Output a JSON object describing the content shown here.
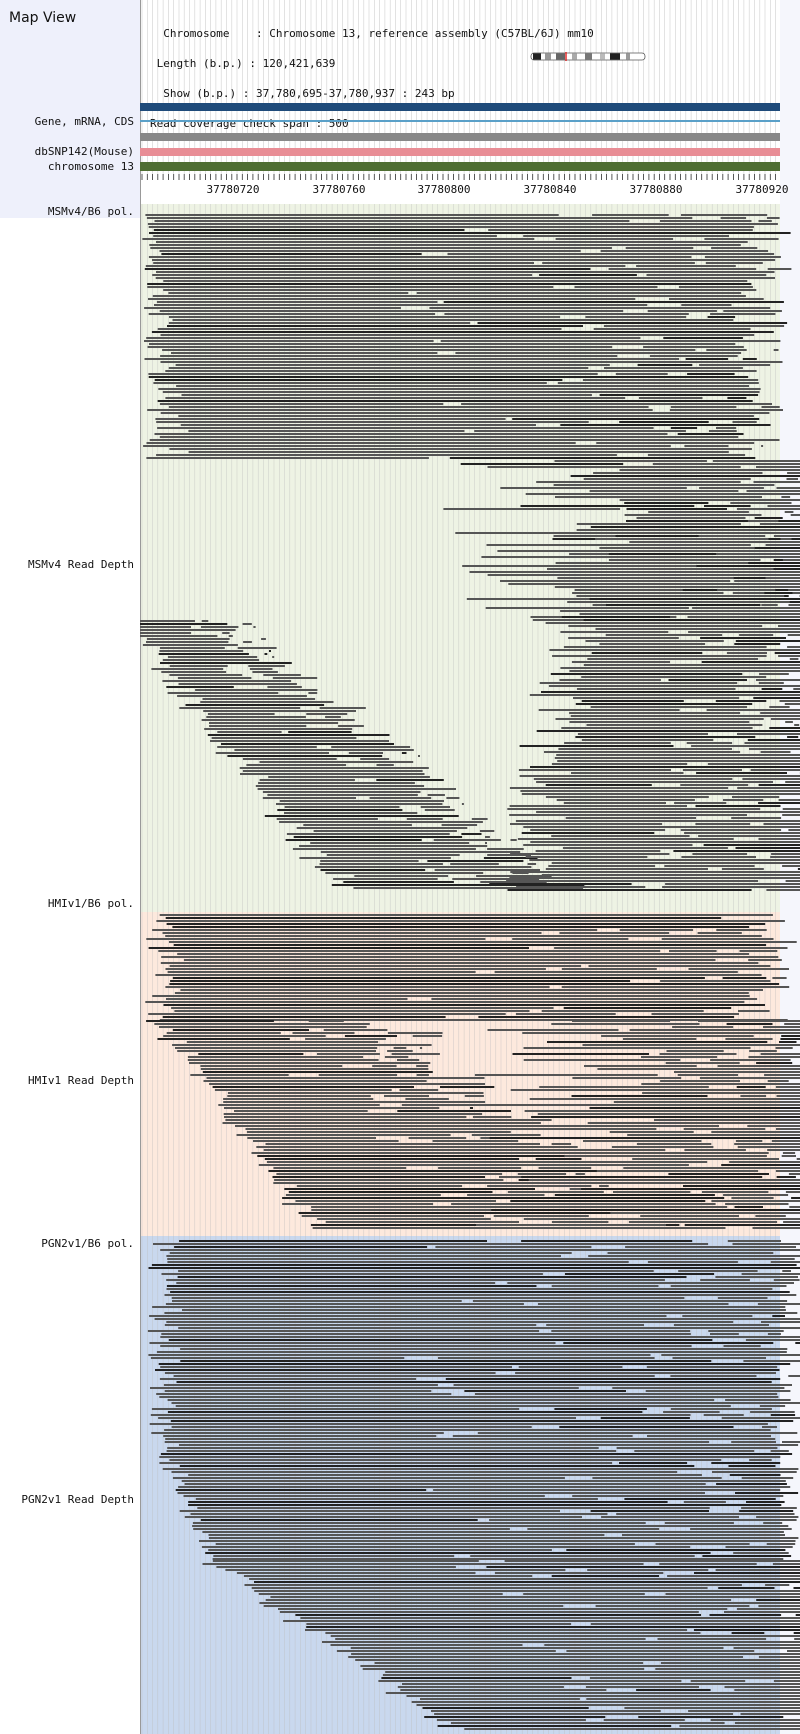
{
  "title": "Map View",
  "info": {
    "lines": [
      "  Chromosome    : Chromosome 13, reference assembly (C57BL/6J) mm10",
      " Length (b.p.) : 120,421,639",
      "  Show (b.p.) : 37,780,695-37,780,937 : 243 bp",
      "Read coverage check span : 500"
    ]
  },
  "tracks": {
    "gene": "Gene, mRNA, CDS",
    "snp": "dbSNP142(Mouse)",
    "chrom": "chromosome 13"
  },
  "axis": {
    "ticks": [
      "37780720",
      "37780760",
      "37780800",
      "37780840",
      "37780880",
      "37780920"
    ]
  },
  "panels": [
    {
      "pol_label": "MSMv4/B6 pol.",
      "depth_label": "MSMv4 Read Depth",
      "bg": "#eef3e4"
    },
    {
      "pol_label": "HMIv1/B6 pol.",
      "depth_label": "HMIv1 Read Depth",
      "bg": "#fde9dd"
    },
    {
      "pol_label": "PGN2v1/B6 pol.",
      "depth_label": "PGN2v1 Read Depth",
      "bg": "#c9d8ee"
    }
  ],
  "colors": {
    "left_panel": "#eef0fb",
    "gene_bar": "#1f4b7a",
    "mrna_line": "#5aa0c8",
    "cds_bar": "#888888",
    "snp_bar": "#e88d95",
    "chrom_bar": "#4f6e33",
    "read": "#555555",
    "read_dark": "#222222",
    "grid": "#bcbcbc"
  }
}
